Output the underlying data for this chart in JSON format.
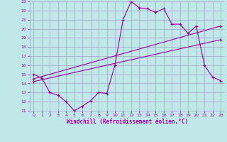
{
  "xlabel": "Windchill (Refroidissement éolien,°C)",
  "bg_color": "#c0e8e8",
  "grid_color": "#a0a0c8",
  "line_color": "#990099",
  "xlim": [
    -0.5,
    23.5
  ],
  "ylim": [
    11,
    23
  ],
  "xticks": [
    0,
    1,
    2,
    3,
    4,
    5,
    6,
    7,
    8,
    9,
    10,
    11,
    12,
    13,
    14,
    15,
    16,
    17,
    18,
    19,
    20,
    21,
    22,
    23
  ],
  "yticks": [
    11,
    12,
    13,
    14,
    15,
    16,
    17,
    18,
    19,
    20,
    21,
    22,
    23
  ],
  "series1_x": [
    0,
    1,
    2,
    3,
    4,
    5,
    6,
    7,
    8,
    9,
    10,
    11,
    12,
    13,
    14,
    15,
    16,
    17,
    18,
    19,
    20,
    21,
    22,
    23
  ],
  "series1_y": [
    15.0,
    14.6,
    13.0,
    12.7,
    12.0,
    11.0,
    11.5,
    12.1,
    13.0,
    12.9,
    16.0,
    21.0,
    23.0,
    22.3,
    22.2,
    21.8,
    22.2,
    20.5,
    20.5,
    19.5,
    20.3,
    16.0,
    14.7,
    14.3
  ],
  "series2_x": [
    0,
    23
  ],
  "series2_y": [
    14.5,
    20.3
  ],
  "series3_x": [
    0,
    23
  ],
  "series3_y": [
    14.2,
    18.8
  ]
}
